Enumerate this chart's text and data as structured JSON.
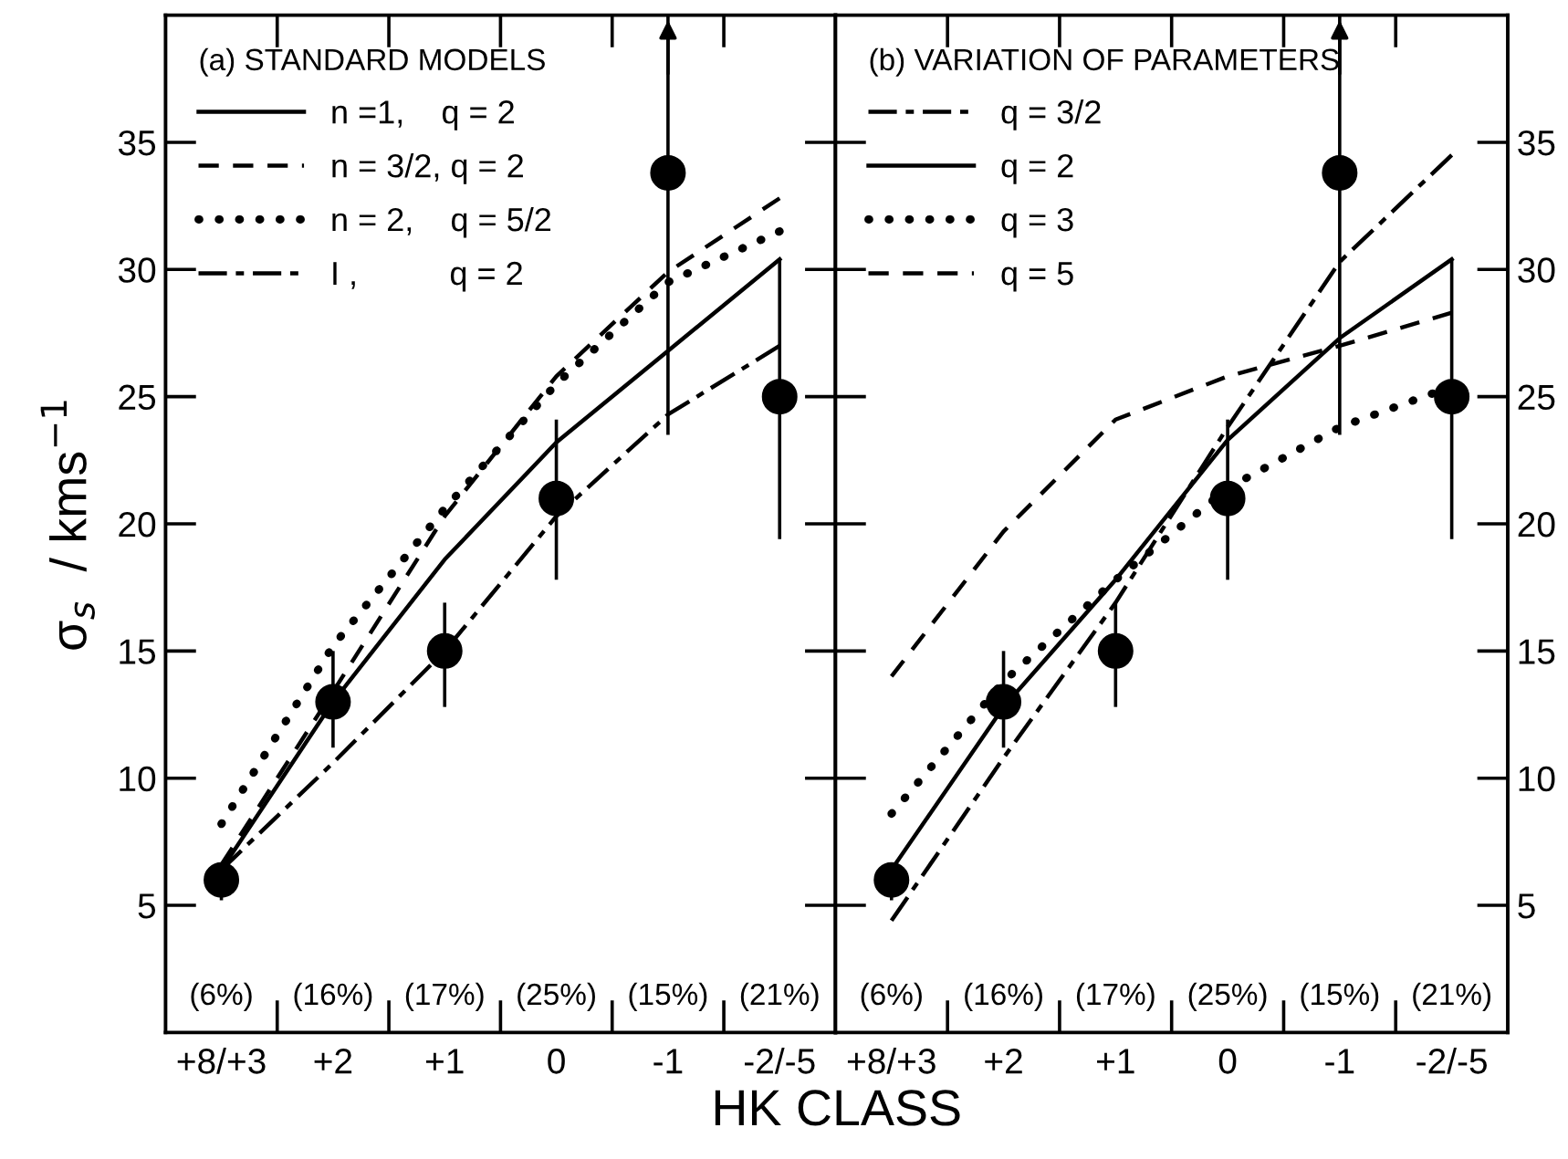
{
  "chart_data": [
    {
      "type": "line",
      "legend_title": "(a) STANDARD MODELS",
      "xlabel": "HK CLASS",
      "ylabel": "σ$_{s}$  / kms$^{−1}$",
      "legend": "top left",
      "grid": false,
      "categories": [
        "+8/+3",
        "+2",
        "+1",
        "0",
        "-1",
        "-2/-5"
      ],
      "ylim": [
        0,
        40
      ],
      "yticks": [
        5,
        10,
        15,
        20,
        25,
        30,
        35
      ],
      "series": [
        {
          "name": "n =1,    q = 2",
          "color": "#000000",
          "line_style": "solid",
          "values": [
            6.4,
            13.0,
            18.6,
            23.2,
            26.8,
            30.4
          ]
        },
        {
          "name": "n = 3/2, q = 2",
          "color": "#000000",
          "line_style": "dashed",
          "values": [
            6.6,
            13.4,
            20.3,
            25.8,
            29.9,
            32.8
          ]
        },
        {
          "name": "n = 2,    q = 5/2",
          "color": "#000000",
          "line_style": "dotted",
          "values": [
            8.2,
            15.2,
            20.6,
            25.5,
            29.5,
            31.5
          ]
        },
        {
          "name": "I ,          q = 2",
          "color": "#000000",
          "line_style": "dashdot",
          "values": [
            6.4,
            10.6,
            15.0,
            20.3,
            24.3,
            27.0
          ]
        },
        {
          "type": "scatter",
          "marker": "circle",
          "color": "#000000",
          "values": [
            6.0,
            13.0,
            15.0,
            21.0,
            33.8,
            25.0
          ],
          "errors": [
            [
              5.2,
              6.6
            ],
            [
              11.2,
              15.0
            ],
            [
              12.8,
              16.9
            ],
            [
              17.8,
              24.1
            ],
            [
              23.5,
              40
            ],
            [
              19.4,
              30.4
            ]
          ]
        }
      ],
      "annotations": [
        "(6%)",
        "(16%)",
        "(17%)",
        "(25%)",
        "(15%)",
        "(21%)"
      ]
    },
    {
      "type": "line",
      "legend_title": "(b) VARIATION OF PARAMETERS",
      "legend": "top left",
      "grid": false,
      "categories": [
        "+8/+3",
        "+2",
        "+1",
        "0",
        "-1",
        "-2/-5"
      ],
      "ylim": [
        0,
        40
      ],
      "yticks": [
        5,
        10,
        15,
        20,
        25,
        30,
        35
      ],
      "series": [
        {
          "name": "q = 3/2",
          "color": "#000000",
          "line_style": "dashdot",
          "values": [
            4.4,
            10.8,
            16.9,
            23.8,
            30.3,
            34.5
          ]
        },
        {
          "name": "q = 2",
          "color": "#000000",
          "line_style": "solid",
          "values": [
            6.4,
            12.8,
            17.8,
            23.3,
            27.3,
            30.4
          ]
        },
        {
          "name": "q = 3",
          "color": "#000000",
          "line_style": "dotted",
          "values": [
            8.6,
            13.8,
            17.8,
            21.4,
            23.8,
            25.4
          ]
        },
        {
          "name": "q = 5",
          "color": "#000000",
          "line_style": "dashed",
          "values": [
            14.0,
            19.7,
            24.1,
            25.8,
            27.0,
            28.3
          ]
        },
        {
          "type": "scatter",
          "marker": "circle",
          "color": "#000000",
          "values": [
            6.0,
            13.0,
            15.0,
            21.0,
            33.8,
            25.0
          ],
          "errors": [
            [
              5.2,
              6.6
            ],
            [
              11.2,
              15.0
            ],
            [
              12.8,
              16.9
            ],
            [
              17.8,
              24.1
            ],
            [
              23.5,
              40
            ],
            [
              19.4,
              30.4
            ]
          ]
        }
      ],
      "annotations": [
        "(6%)",
        "(16%)",
        "(17%)",
        "(25%)",
        "(15%)",
        "(21%)"
      ]
    }
  ]
}
